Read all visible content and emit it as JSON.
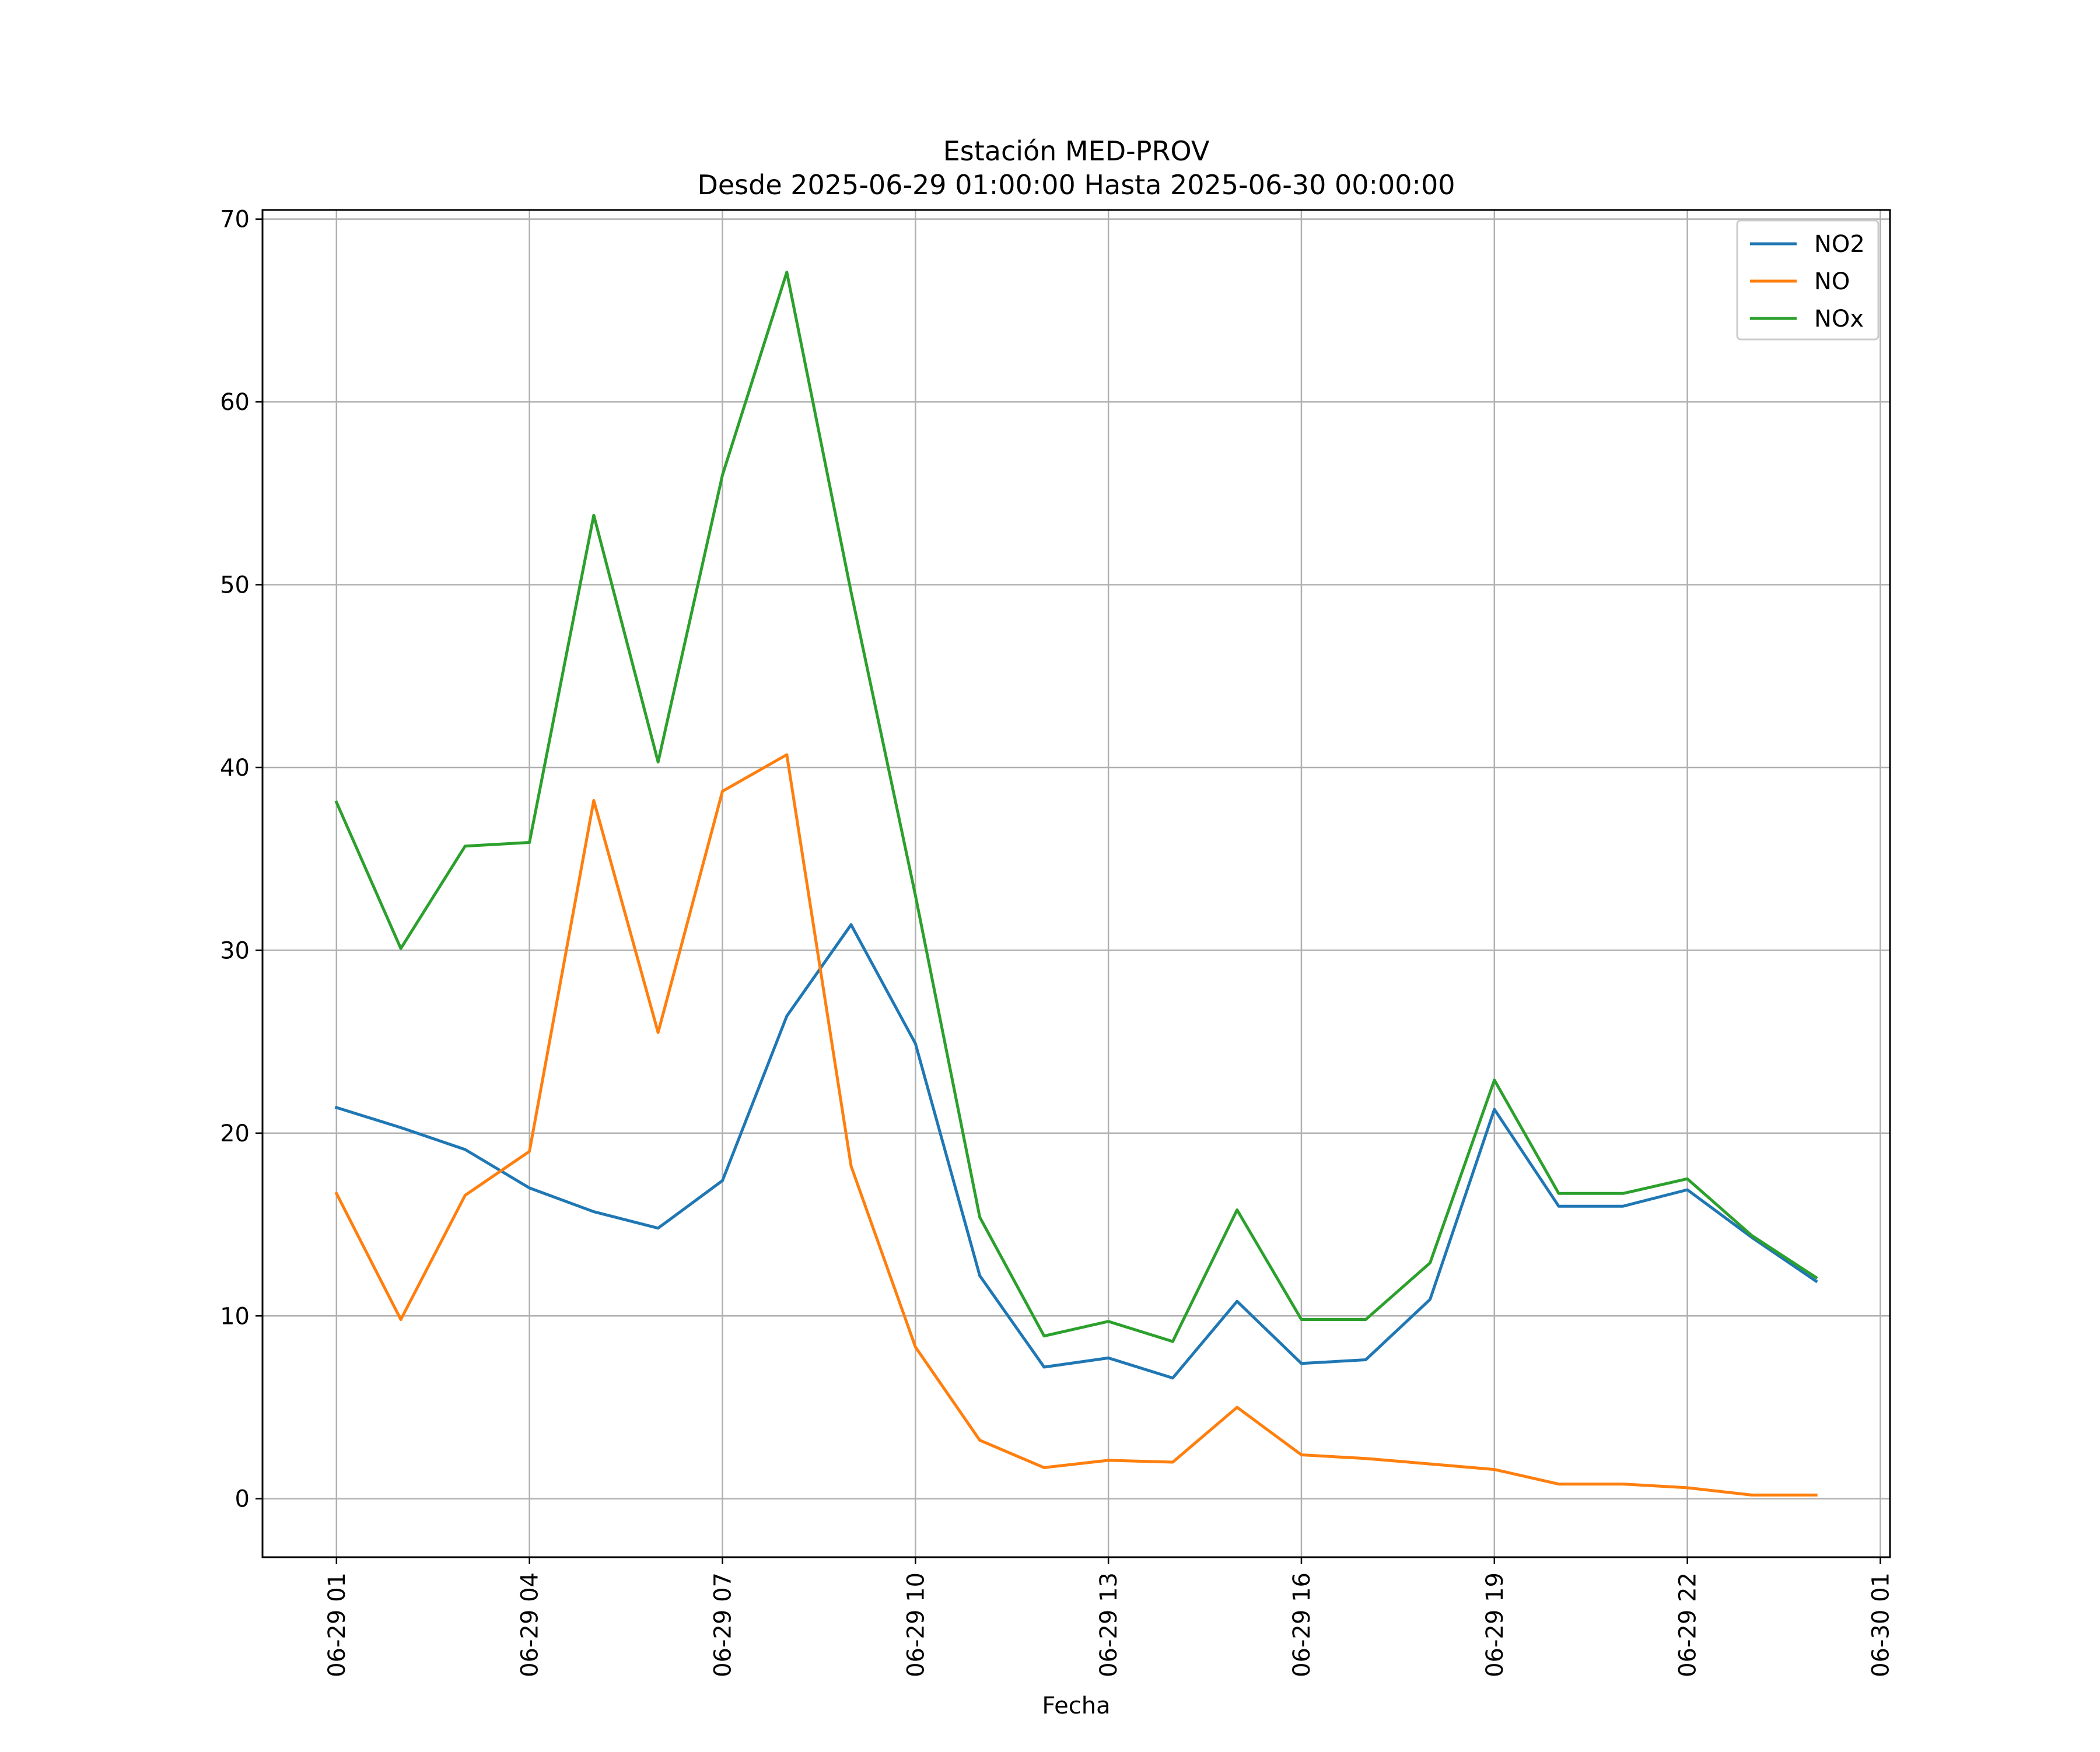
{
  "chart_data": {
    "type": "line",
    "title_line1": "Estación MED-PROV",
    "title_line2": "Desde 2025-06-29 01:00:00 Hasta 2025-06-30 00:00:00",
    "xlabel": "Fecha",
    "ylabel": "",
    "x": [
      "2025-06-29 01:00",
      "2025-06-29 02:00",
      "2025-06-29 03:00",
      "2025-06-29 04:00",
      "2025-06-29 05:00",
      "2025-06-29 06:00",
      "2025-06-29 07:00",
      "2025-06-29 08:00",
      "2025-06-29 09:00",
      "2025-06-29 10:00",
      "2025-06-29 11:00",
      "2025-06-29 12:00",
      "2025-06-29 13:00",
      "2025-06-29 14:00",
      "2025-06-29 15:00",
      "2025-06-29 16:00",
      "2025-06-29 17:00",
      "2025-06-29 18:00",
      "2025-06-29 19:00",
      "2025-06-29 20:00",
      "2025-06-29 21:00",
      "2025-06-29 22:00",
      "2025-06-29 23:00",
      "2025-06-30 00:00"
    ],
    "series": [
      {
        "name": "NO2",
        "color": "#1f77b4",
        "values": [
          21.4,
          20.3,
          19.1,
          17.0,
          15.7,
          14.8,
          17.4,
          26.4,
          31.4,
          24.9,
          12.2,
          7.2,
          7.7,
          6.6,
          10.8,
          7.4,
          7.6,
          10.9,
          21.3,
          16.0,
          16.0,
          16.9,
          14.3,
          11.9
        ]
      },
      {
        "name": "NO",
        "color": "#ff7f0e",
        "values": [
          16.7,
          9.8,
          16.6,
          19.0,
          38.2,
          25.5,
          38.7,
          40.7,
          18.2,
          8.3,
          3.2,
          1.7,
          2.1,
          2.0,
          5.0,
          2.4,
          2.2,
          1.9,
          1.6,
          0.8,
          0.8,
          0.6,
          0.2,
          0.2
        ]
      },
      {
        "name": "NOx",
        "color": "#2ca02c",
        "values": [
          38.1,
          30.1,
          35.7,
          35.9,
          53.8,
          40.3,
          56.0,
          67.1,
          49.6,
          33.0,
          15.4,
          8.9,
          9.7,
          8.6,
          15.8,
          9.8,
          9.8,
          12.9,
          22.9,
          16.7,
          16.7,
          17.5,
          14.4,
          12.1
        ]
      }
    ],
    "xticks": [
      "06-29 01",
      "06-29 04",
      "06-29 07",
      "06-29 10",
      "06-29 13",
      "06-29 16",
      "06-29 19",
      "06-29 22",
      "06-30 01"
    ],
    "yticks": [
      "0",
      "10",
      "20",
      "30",
      "40",
      "50",
      "60",
      "70"
    ],
    "ylim": [
      -3.2,
      70.5
    ],
    "xlim_hours": [
      -1.15,
      24.15
    ],
    "grid": true,
    "legend_position": "top-right"
  }
}
